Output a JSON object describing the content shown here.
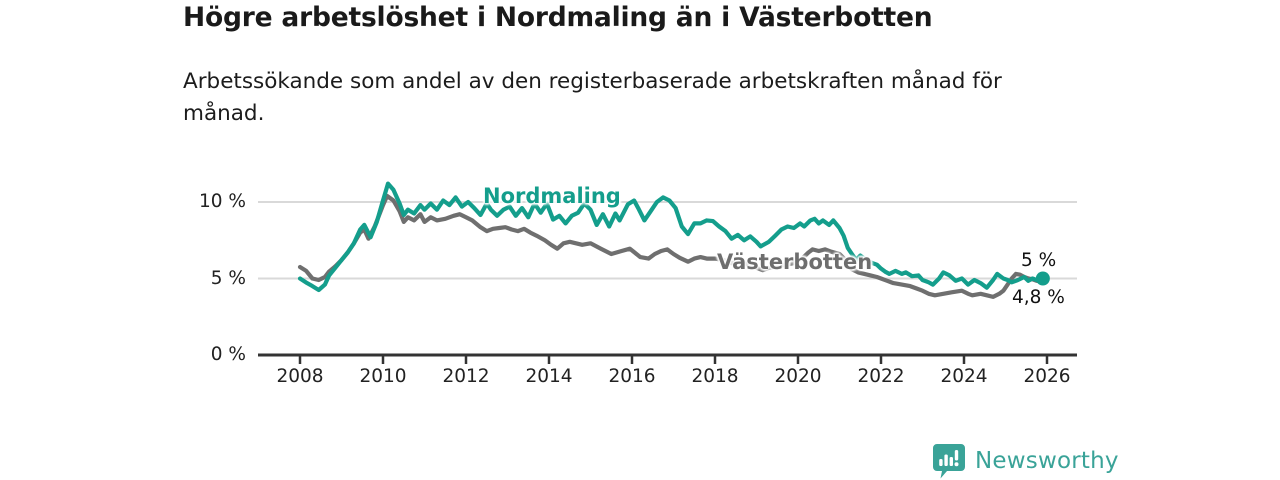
{
  "header": {
    "title": "Högre arbetslöshet i Nordmaling än i Västerbotten",
    "subtitle": "Arbetssökande som andel av den registerbaserade arbetskraften månad för månad."
  },
  "footer": {
    "brand": "Newsworthy",
    "brand_color": "#3aa398",
    "logo_icon": "bar-chart-speech-bubble-icon"
  },
  "colors": {
    "nordmaling": "#149e8c",
    "vasterbotten": "#6f6f6f",
    "grid": "#d9d9d9",
    "axis": "#333333",
    "text": "#1a1a1a"
  },
  "chart_data": {
    "type": "line",
    "title": "Högre arbetslöshet i Nordmaling än i Västerbotten",
    "subtitle": "Arbetssökande som andel av den registerbaserade arbetskraften månad för månad.",
    "unit": "%",
    "grid": true,
    "x_axis": {
      "min": 2007.0,
      "max": 2026.7,
      "ticks": [
        {
          "value": 2008,
          "label": "2008"
        },
        {
          "value": 2010,
          "label": "2010"
        },
        {
          "value": 2012,
          "label": "2012"
        },
        {
          "value": 2014,
          "label": "2014"
        },
        {
          "value": 2016,
          "label": "2016"
        },
        {
          "value": 2018,
          "label": "2018"
        },
        {
          "value": 2020,
          "label": "2020"
        },
        {
          "value": 2022,
          "label": "2022"
        },
        {
          "value": 2024,
          "label": "2024"
        },
        {
          "value": 2026,
          "label": "2026"
        }
      ]
    },
    "y_axis": {
      "min": 0,
      "max": 11.8,
      "ticks": [
        {
          "value": 0,
          "label": "0 %"
        },
        {
          "value": 5,
          "label": "5 %"
        },
        {
          "value": 10,
          "label": "10 %"
        }
      ]
    },
    "series": [
      {
        "name": "Nordmaling",
        "color": "#149e8c",
        "points": [
          [
            2008.0,
            5.0
          ],
          [
            2008.17,
            4.7
          ],
          [
            2008.3,
            4.5
          ],
          [
            2008.45,
            4.25
          ],
          [
            2008.6,
            4.6
          ],
          [
            2008.7,
            5.2
          ],
          [
            2008.85,
            5.7
          ],
          [
            2009.0,
            6.2
          ],
          [
            2009.15,
            6.7
          ],
          [
            2009.3,
            7.3
          ],
          [
            2009.45,
            8.2
          ],
          [
            2009.55,
            8.5
          ],
          [
            2009.7,
            7.7
          ],
          [
            2009.85,
            8.7
          ],
          [
            2010.0,
            10.1
          ],
          [
            2010.12,
            11.2
          ],
          [
            2010.25,
            10.8
          ],
          [
            2010.4,
            9.9
          ],
          [
            2010.5,
            9.15
          ],
          [
            2010.6,
            9.5
          ],
          [
            2010.75,
            9.25
          ],
          [
            2010.9,
            9.8
          ],
          [
            2011.0,
            9.5
          ],
          [
            2011.15,
            9.9
          ],
          [
            2011.3,
            9.5
          ],
          [
            2011.45,
            10.1
          ],
          [
            2011.6,
            9.8
          ],
          [
            2011.75,
            10.3
          ],
          [
            2011.9,
            9.7
          ],
          [
            2012.05,
            10.0
          ],
          [
            2012.2,
            9.6
          ],
          [
            2012.35,
            9.15
          ],
          [
            2012.5,
            9.9
          ],
          [
            2012.6,
            9.5
          ],
          [
            2012.75,
            9.1
          ],
          [
            2012.9,
            9.5
          ],
          [
            2013.05,
            9.7
          ],
          [
            2013.2,
            9.1
          ],
          [
            2013.35,
            9.6
          ],
          [
            2013.5,
            9.0
          ],
          [
            2013.65,
            9.9
          ],
          [
            2013.8,
            9.3
          ],
          [
            2013.95,
            9.9
          ],
          [
            2014.1,
            8.85
          ],
          [
            2014.25,
            9.1
          ],
          [
            2014.4,
            8.6
          ],
          [
            2014.55,
            9.1
          ],
          [
            2014.7,
            9.3
          ],
          [
            2014.85,
            9.9
          ],
          [
            2015.0,
            9.5
          ],
          [
            2015.15,
            8.5
          ],
          [
            2015.3,
            9.2
          ],
          [
            2015.45,
            8.4
          ],
          [
            2015.6,
            9.25
          ],
          [
            2015.7,
            8.8
          ],
          [
            2015.9,
            9.85
          ],
          [
            2016.05,
            10.1
          ],
          [
            2016.15,
            9.6
          ],
          [
            2016.3,
            8.8
          ],
          [
            2016.45,
            9.4
          ],
          [
            2016.6,
            10.0
          ],
          [
            2016.75,
            10.3
          ],
          [
            2016.9,
            10.1
          ],
          [
            2017.05,
            9.6
          ],
          [
            2017.2,
            8.4
          ],
          [
            2017.35,
            7.9
          ],
          [
            2017.5,
            8.6
          ],
          [
            2017.65,
            8.6
          ],
          [
            2017.8,
            8.8
          ],
          [
            2017.95,
            8.75
          ],
          [
            2018.1,
            8.4
          ],
          [
            2018.25,
            8.1
          ],
          [
            2018.4,
            7.6
          ],
          [
            2018.55,
            7.85
          ],
          [
            2018.7,
            7.5
          ],
          [
            2018.85,
            7.75
          ],
          [
            2019.0,
            7.4
          ],
          [
            2019.1,
            7.1
          ],
          [
            2019.3,
            7.4
          ],
          [
            2019.45,
            7.8
          ],
          [
            2019.6,
            8.2
          ],
          [
            2019.75,
            8.4
          ],
          [
            2019.9,
            8.3
          ],
          [
            2020.05,
            8.6
          ],
          [
            2020.15,
            8.4
          ],
          [
            2020.3,
            8.8
          ],
          [
            2020.4,
            8.9
          ],
          [
            2020.5,
            8.6
          ],
          [
            2020.6,
            8.8
          ],
          [
            2020.75,
            8.5
          ],
          [
            2020.85,
            8.8
          ],
          [
            2021.0,
            8.3
          ],
          [
            2021.1,
            7.8
          ],
          [
            2021.2,
            7.0
          ],
          [
            2021.3,
            6.6
          ],
          [
            2021.4,
            6.2
          ],
          [
            2021.5,
            6.5
          ],
          [
            2021.65,
            6.2
          ],
          [
            2021.8,
            6.0
          ],
          [
            2021.9,
            5.9
          ],
          [
            2022.0,
            5.65
          ],
          [
            2022.1,
            5.45
          ],
          [
            2022.2,
            5.3
          ],
          [
            2022.35,
            5.5
          ],
          [
            2022.5,
            5.3
          ],
          [
            2022.6,
            5.4
          ],
          [
            2022.75,
            5.15
          ],
          [
            2022.9,
            5.2
          ],
          [
            2023.0,
            4.9
          ],
          [
            2023.15,
            4.75
          ],
          [
            2023.25,
            4.6
          ],
          [
            2023.4,
            5.0
          ],
          [
            2023.5,
            5.4
          ],
          [
            2023.65,
            5.2
          ],
          [
            2023.8,
            4.85
          ],
          [
            2023.95,
            5.0
          ],
          [
            2024.1,
            4.6
          ],
          [
            2024.25,
            4.9
          ],
          [
            2024.4,
            4.7
          ],
          [
            2024.55,
            4.4
          ],
          [
            2024.7,
            4.9
          ],
          [
            2024.8,
            5.3
          ],
          [
            2024.95,
            5.0
          ],
          [
            2025.05,
            4.9
          ],
          [
            2025.15,
            4.75
          ],
          [
            2025.3,
            4.9
          ],
          [
            2025.45,
            5.1
          ],
          [
            2025.55,
            4.85
          ],
          [
            2025.65,
            5.0
          ],
          [
            2025.75,
            4.9
          ],
          [
            2025.9,
            5.0
          ]
        ]
      },
      {
        "name": "Västerbotten",
        "color": "#6f6f6f",
        "points": [
          [
            2008.0,
            5.75
          ],
          [
            2008.15,
            5.5
          ],
          [
            2008.3,
            5.0
          ],
          [
            2008.45,
            4.9
          ],
          [
            2008.6,
            5.1
          ],
          [
            2008.7,
            5.45
          ],
          [
            2008.85,
            5.8
          ],
          [
            2009.0,
            6.2
          ],
          [
            2009.15,
            6.7
          ],
          [
            2009.3,
            7.3
          ],
          [
            2009.45,
            8.0
          ],
          [
            2009.55,
            8.2
          ],
          [
            2009.65,
            7.6
          ],
          [
            2009.8,
            8.4
          ],
          [
            2010.0,
            9.8
          ],
          [
            2010.1,
            10.4
          ],
          [
            2010.25,
            10.1
          ],
          [
            2010.4,
            9.4
          ],
          [
            2010.5,
            8.7
          ],
          [
            2010.6,
            9.0
          ],
          [
            2010.75,
            8.8
          ],
          [
            2010.9,
            9.2
          ],
          [
            2011.0,
            8.7
          ],
          [
            2011.15,
            9.0
          ],
          [
            2011.3,
            8.8
          ],
          [
            2011.5,
            8.9
          ],
          [
            2011.7,
            9.1
          ],
          [
            2011.85,
            9.2
          ],
          [
            2012.0,
            9.0
          ],
          [
            2012.15,
            8.8
          ],
          [
            2012.35,
            8.35
          ],
          [
            2012.5,
            8.1
          ],
          [
            2012.65,
            8.25
          ],
          [
            2012.8,
            8.3
          ],
          [
            2012.95,
            8.35
          ],
          [
            2013.1,
            8.2
          ],
          [
            2013.25,
            8.1
          ],
          [
            2013.4,
            8.25
          ],
          [
            2013.55,
            8.0
          ],
          [
            2013.7,
            7.8
          ],
          [
            2013.9,
            7.5
          ],
          [
            2014.05,
            7.2
          ],
          [
            2014.2,
            6.95
          ],
          [
            2014.35,
            7.3
          ],
          [
            2014.5,
            7.4
          ],
          [
            2014.65,
            7.3
          ],
          [
            2014.8,
            7.2
          ],
          [
            2015.0,
            7.3
          ],
          [
            2015.25,
            6.95
          ],
          [
            2015.5,
            6.6
          ],
          [
            2015.75,
            6.8
          ],
          [
            2015.95,
            6.95
          ],
          [
            2016.2,
            6.4
          ],
          [
            2016.4,
            6.3
          ],
          [
            2016.55,
            6.6
          ],
          [
            2016.7,
            6.8
          ],
          [
            2016.85,
            6.9
          ],
          [
            2017.0,
            6.6
          ],
          [
            2017.15,
            6.35
          ],
          [
            2017.35,
            6.1
          ],
          [
            2017.5,
            6.3
          ],
          [
            2017.65,
            6.4
          ],
          [
            2017.8,
            6.3
          ],
          [
            2018.0,
            6.3
          ],
          [
            2018.2,
            6.2
          ],
          [
            2018.4,
            6.0
          ],
          [
            2018.6,
            6.1
          ],
          [
            2018.8,
            5.9
          ],
          [
            2019.0,
            5.7
          ],
          [
            2019.15,
            5.55
          ],
          [
            2019.3,
            5.7
          ],
          [
            2019.5,
            5.8
          ],
          [
            2019.7,
            5.9
          ],
          [
            2019.9,
            6.0
          ],
          [
            2020.1,
            6.3
          ],
          [
            2020.25,
            6.7
          ],
          [
            2020.35,
            6.9
          ],
          [
            2020.5,
            6.8
          ],
          [
            2020.65,
            6.9
          ],
          [
            2020.8,
            6.75
          ],
          [
            2021.0,
            6.6
          ],
          [
            2021.15,
            6.2
          ],
          [
            2021.3,
            5.6
          ],
          [
            2021.45,
            5.4
          ],
          [
            2021.6,
            5.3
          ],
          [
            2021.75,
            5.2
          ],
          [
            2021.9,
            5.1
          ],
          [
            2022.0,
            5.0
          ],
          [
            2022.15,
            4.85
          ],
          [
            2022.3,
            4.7
          ],
          [
            2022.5,
            4.6
          ],
          [
            2022.7,
            4.5
          ],
          [
            2022.85,
            4.35
          ],
          [
            2023.0,
            4.2
          ],
          [
            2023.15,
            4.0
          ],
          [
            2023.3,
            3.9
          ],
          [
            2023.5,
            4.0
          ],
          [
            2023.7,
            4.1
          ],
          [
            2023.95,
            4.2
          ],
          [
            2024.1,
            4.0
          ],
          [
            2024.2,
            3.9
          ],
          [
            2024.4,
            4.0
          ],
          [
            2024.55,
            3.9
          ],
          [
            2024.7,
            3.8
          ],
          [
            2024.85,
            4.0
          ],
          [
            2024.95,
            4.2
          ],
          [
            2025.05,
            4.6
          ],
          [
            2025.15,
            5.0
          ],
          [
            2025.25,
            5.3
          ],
          [
            2025.35,
            5.25
          ],
          [
            2025.45,
            5.1
          ],
          [
            2025.55,
            5.0
          ],
          [
            2025.65,
            4.95
          ],
          [
            2025.75,
            4.85
          ],
          [
            2025.9,
            4.8
          ]
        ]
      }
    ],
    "annotations": {
      "nordmaling_label": "Nordmaling",
      "vasterbotten_label": "Västerbotten"
    },
    "end_labels": [
      {
        "series": "Nordmaling",
        "label": "5 %"
      },
      {
        "series": "Västerbotten",
        "label": "4,8 %"
      }
    ],
    "end_dot": {
      "series": "Nordmaling",
      "x": 2025.9,
      "value": 5.0
    },
    "legend_position": "inline-labels"
  }
}
